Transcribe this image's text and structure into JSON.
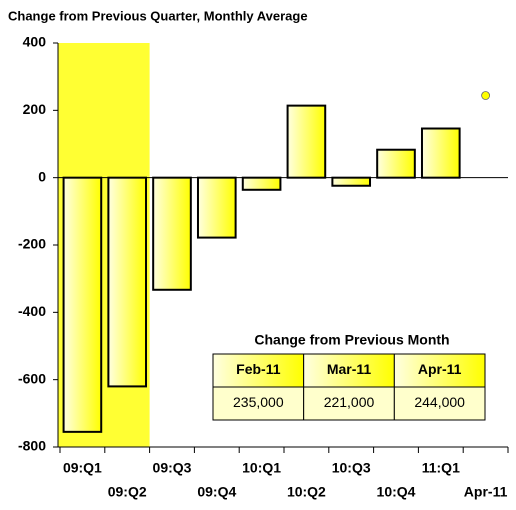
{
  "chart_data": {
    "type": "bar",
    "title": "Change from Previous Quarter, Monthly Average",
    "categories": [
      "09:Q1",
      "09:Q2",
      "09:Q3",
      "09:Q4",
      "10:Q1",
      "10:Q2",
      "10:Q3",
      "10:Q4",
      "11:Q1",
      "Apr-11"
    ],
    "series": [
      {
        "color": "#ffff00",
        "values": [
          -755,
          -620,
          -333,
          -178,
          -36,
          214,
          -24,
          83,
          146,
          null
        ]
      },
      {
        "color": "#ffff00",
        "marker": "dot",
        "values": [
          null,
          null,
          null,
          null,
          null,
          null,
          null,
          null,
          null,
          244
        ]
      }
    ],
    "highlight_band": {
      "color": "#ffff33",
      "categories": [
        0,
        1
      ]
    },
    "ylim": [
      -800,
      400
    ],
    "yticks": [
      400,
      200,
      0,
      -200,
      -400,
      -600,
      -800
    ],
    "grid": false,
    "table": {
      "title": "Change from Previous Month",
      "columns": [
        "Feb-11",
        "Mar-11",
        "Apr-11"
      ],
      "values": [
        235000,
        221000,
        244000
      ],
      "value_labels": [
        "235,000",
        "221,000",
        "244,000"
      ]
    }
  }
}
